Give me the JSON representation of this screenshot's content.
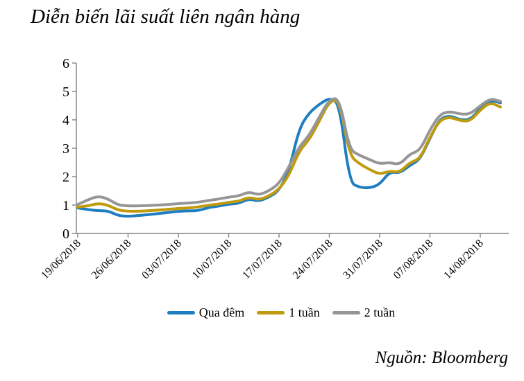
{
  "page": {
    "title": "Diễn biến lãi suất liên ngân hàng",
    "source_note": "Nguồn: Bloomberg"
  },
  "chart_data": {
    "type": "line",
    "title": "Diễn biến lãi suất liên ngân hàng",
    "source_note": "Nguồn: Bloomberg",
    "xlabel": "",
    "ylabel": "",
    "ylim": [
      0,
      6
    ],
    "y_ticks": [
      0,
      1,
      2,
      3,
      4,
      5,
      6
    ],
    "grid": false,
    "legend_position": "bottom",
    "axis_color": "#808080",
    "n_points": 43,
    "x_tick_labels": [
      "19/06/2018",
      "26/06/2018",
      "03/07/2018",
      "10/07/2018",
      "17/07/2018",
      "24/07/2018",
      "31/07/2018",
      "07/08/2018",
      "14/08/2018"
    ],
    "x_tick_indices": [
      0,
      5,
      10,
      15,
      20,
      25,
      30,
      35,
      40
    ],
    "series": [
      {
        "name": "Qua đêm",
        "color": "#1F7EC0",
        "values": [
          0.9,
          0.84,
          0.8,
          0.8,
          0.63,
          0.6,
          0.63,
          0.66,
          0.7,
          0.74,
          0.78,
          0.8,
          0.8,
          0.92,
          0.96,
          1.03,
          1.06,
          1.22,
          1.13,
          1.28,
          1.5,
          2.2,
          3.7,
          4.25,
          4.55,
          4.77,
          4.6,
          1.8,
          1.62,
          1.6,
          1.72,
          2.18,
          2.12,
          2.4,
          2.6,
          3.35,
          4.05,
          4.15,
          4.0,
          4.0,
          4.4,
          4.7,
          4.6
        ]
      },
      {
        "name": "1 tuần",
        "color": "#BF9B0D",
        "values": [
          0.93,
          0.97,
          1.06,
          1.0,
          0.82,
          0.78,
          0.78,
          0.8,
          0.82,
          0.85,
          0.88,
          0.9,
          0.93,
          1.0,
          1.03,
          1.1,
          1.13,
          1.28,
          1.18,
          1.32,
          1.55,
          2.05,
          2.9,
          3.3,
          3.95,
          4.65,
          4.72,
          2.75,
          2.45,
          2.25,
          2.08,
          2.2,
          2.15,
          2.5,
          2.62,
          3.4,
          4.0,
          4.1,
          3.97,
          3.95,
          4.35,
          4.62,
          4.45
        ]
      },
      {
        "name": "2 tuần",
        "color": "#969696",
        "values": [
          1.02,
          1.18,
          1.32,
          1.22,
          1.0,
          0.97,
          0.97,
          0.98,
          1.0,
          1.02,
          1.05,
          1.07,
          1.1,
          1.16,
          1.21,
          1.28,
          1.32,
          1.47,
          1.35,
          1.5,
          1.75,
          2.35,
          3.05,
          3.45,
          4.1,
          4.72,
          4.77,
          2.95,
          2.75,
          2.6,
          2.45,
          2.5,
          2.42,
          2.8,
          2.92,
          3.65,
          4.2,
          4.3,
          4.2,
          4.2,
          4.5,
          4.75,
          4.65
        ]
      }
    ]
  }
}
